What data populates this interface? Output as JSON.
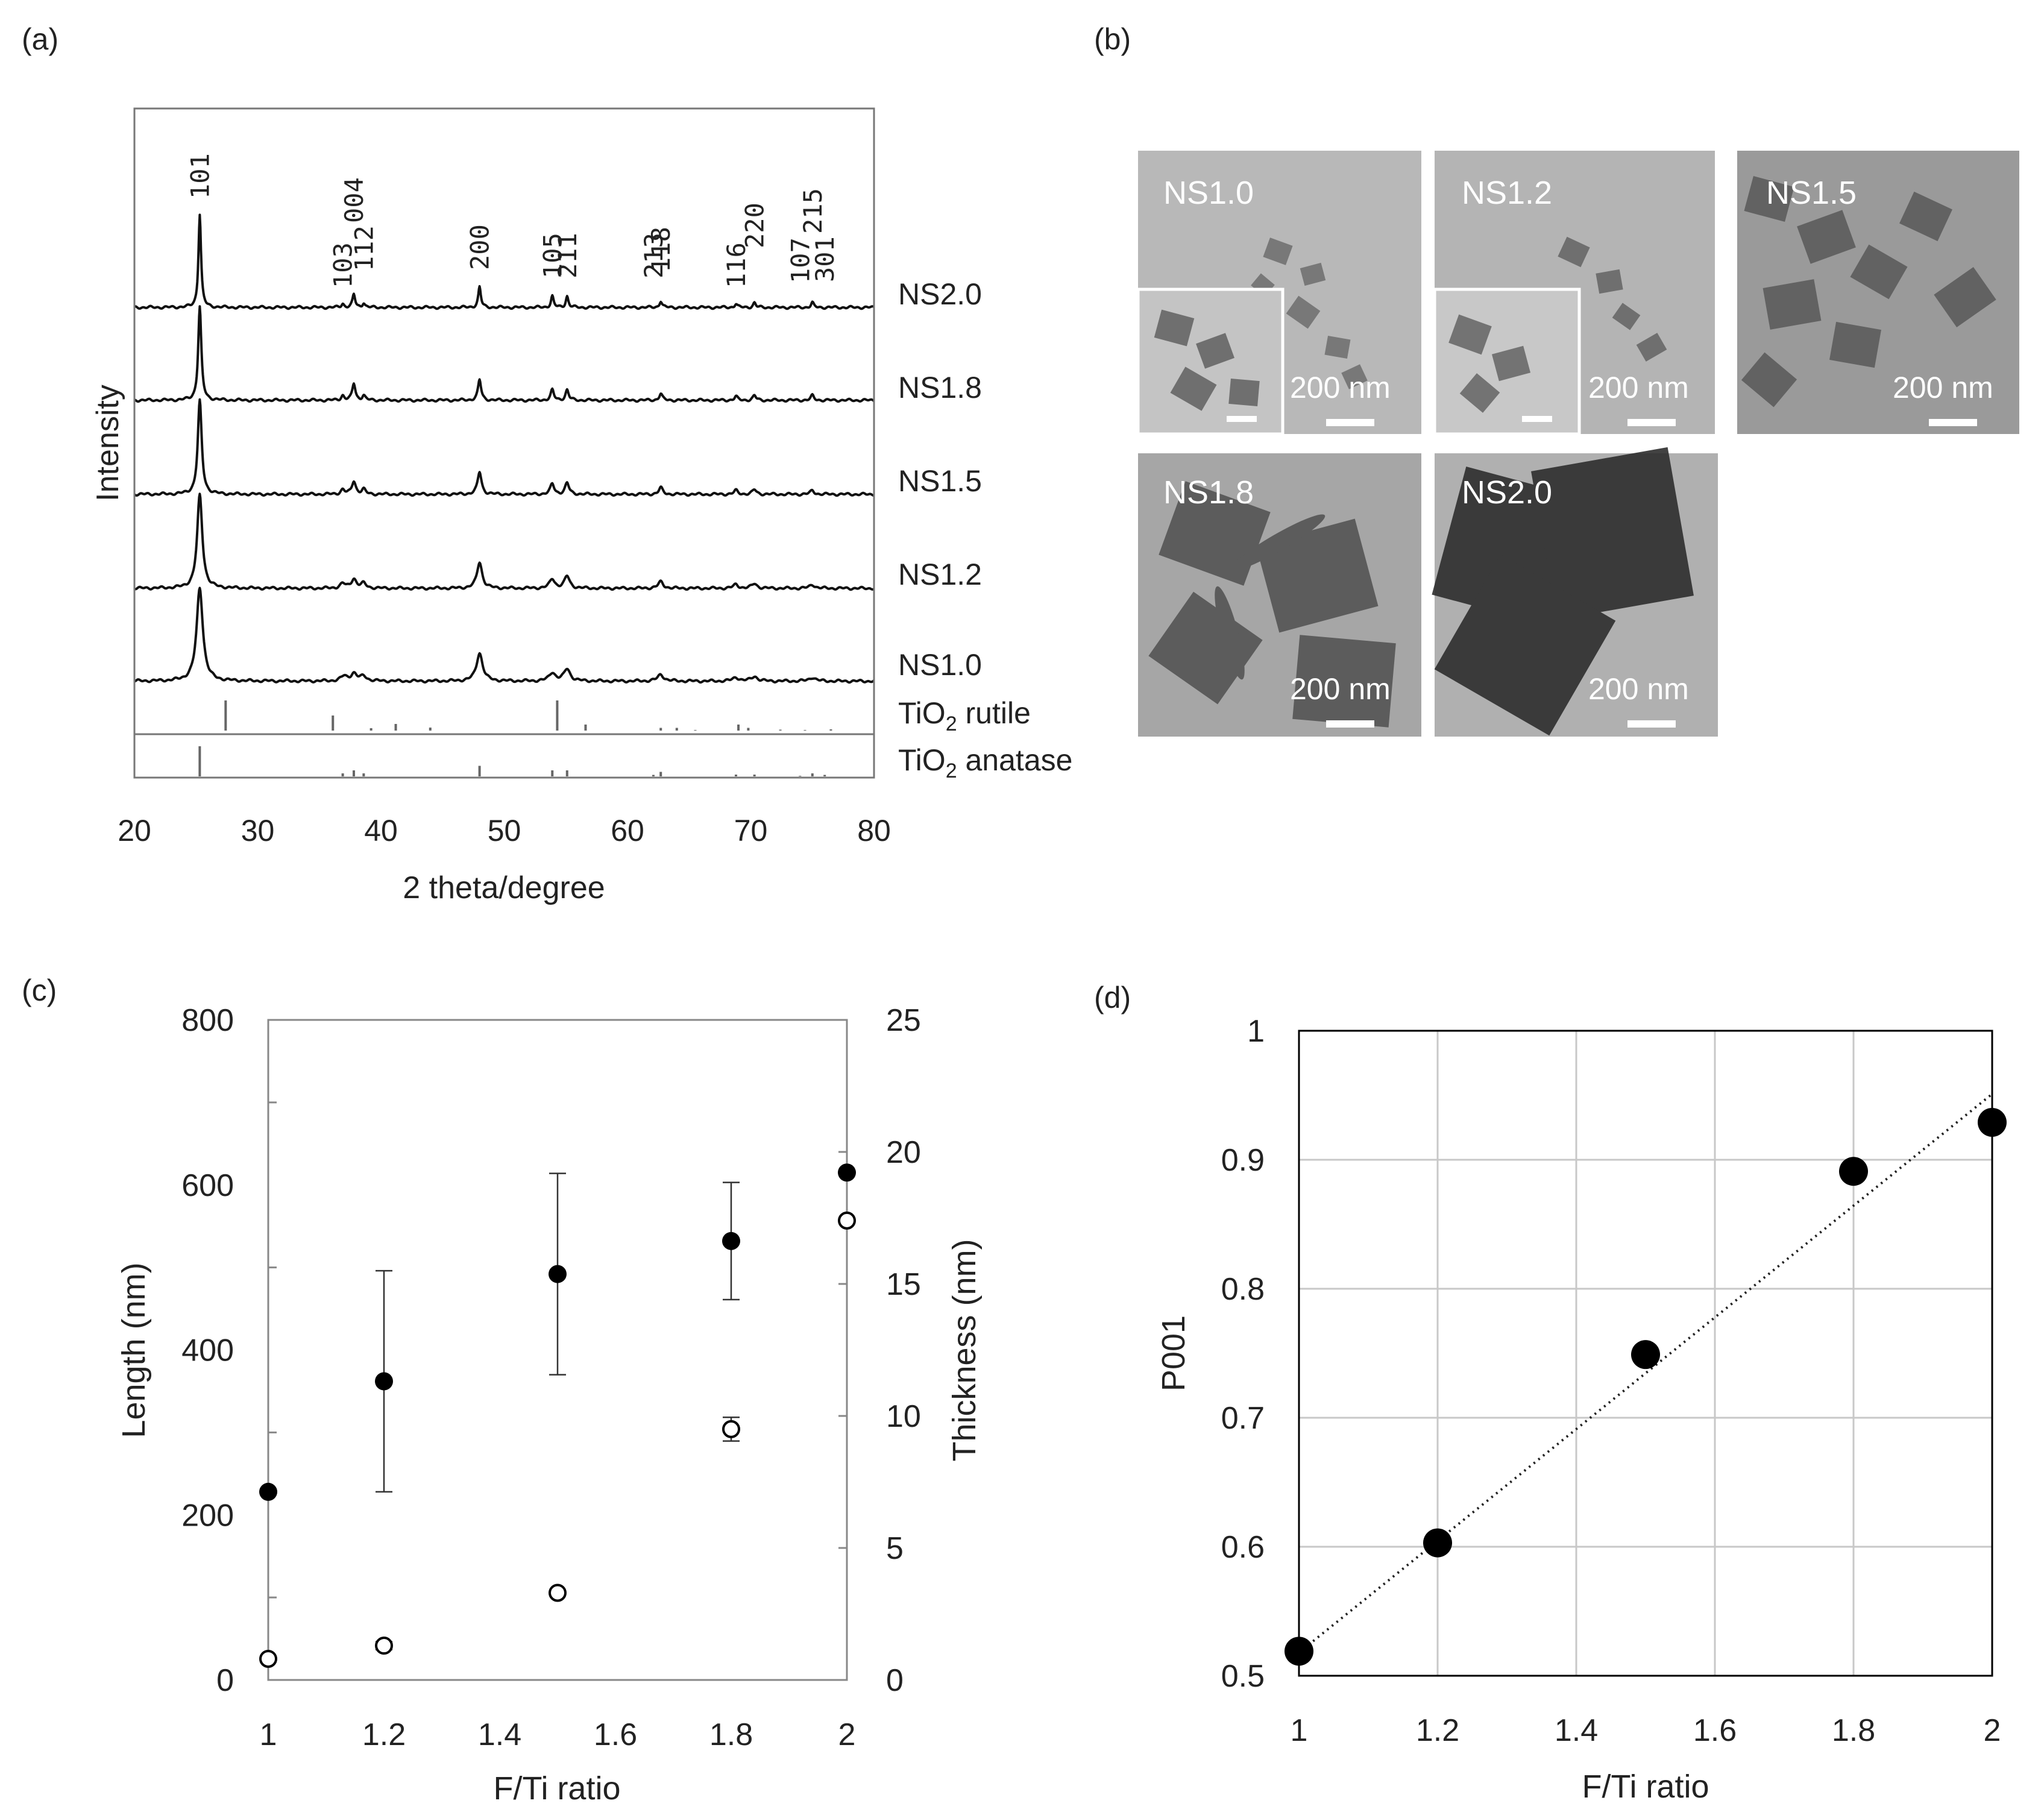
{
  "panels": {
    "a": {
      "label": "(a)"
    },
    "b": {
      "label": "(b)"
    },
    "c": {
      "label": "(c)"
    },
    "d": {
      "label": "(d)"
    }
  },
  "chart_data": [
    {
      "id": "a",
      "type": "line",
      "title": "",
      "xlabel": "2 theta/degree",
      "ylabel": "Intensity",
      "xlim": [
        20,
        80
      ],
      "xticks": [
        20,
        30,
        40,
        50,
        60,
        70,
        80
      ],
      "peak_labels": [
        {
          "text": "101",
          "x": 25.3
        },
        {
          "text": "103",
          "x": 36.9
        },
        {
          "text": "004",
          "x": 37.8
        },
        {
          "text": "112",
          "x": 38.6
        },
        {
          "text": "200",
          "x": 48.0
        },
        {
          "text": "105",
          "x": 53.9
        },
        {
          "text": "211",
          "x": 55.1
        },
        {
          "text": "213",
          "x": 62.1
        },
        {
          "text": "118",
          "x": 62.7
        },
        {
          "text": "116",
          "x": 68.8
        },
        {
          "text": "220",
          "x": 70.3
        },
        {
          "text": "107",
          "x": 74.0
        },
        {
          "text": "215",
          "x": 75.0
        },
        {
          "text": "301",
          "x": 76.0
        }
      ],
      "series": [
        {
          "name": "NS2.0",
          "fwhm": 0.25,
          "peaks": [
            [
              25.3,
              1.0
            ],
            [
              36.9,
              0.04
            ],
            [
              37.8,
              0.14
            ],
            [
              38.6,
              0.05
            ],
            [
              48.0,
              0.22
            ],
            [
              53.9,
              0.12
            ],
            [
              55.1,
              0.12
            ],
            [
              62.7,
              0.07
            ],
            [
              68.8,
              0.04
            ],
            [
              70.3,
              0.05
            ],
            [
              75.0,
              0.05
            ]
          ]
        },
        {
          "name": "NS1.8",
          "fwhm": 0.3,
          "peaks": [
            [
              25.3,
              1.0
            ],
            [
              36.9,
              0.05
            ],
            [
              37.8,
              0.18
            ],
            [
              38.6,
              0.05
            ],
            [
              48.0,
              0.22
            ],
            [
              53.9,
              0.11
            ],
            [
              55.1,
              0.11
            ],
            [
              62.7,
              0.07
            ],
            [
              68.8,
              0.04
            ],
            [
              70.3,
              0.05
            ],
            [
              75.0,
              0.05
            ]
          ]
        },
        {
          "name": "NS1.5",
          "fwhm": 0.38,
          "peaks": [
            [
              25.3,
              1.0
            ],
            [
              36.9,
              0.05
            ],
            [
              37.8,
              0.14
            ],
            [
              38.6,
              0.05
            ],
            [
              48.0,
              0.24
            ],
            [
              53.9,
              0.11
            ],
            [
              55.1,
              0.12
            ],
            [
              62.7,
              0.07
            ],
            [
              68.8,
              0.04
            ],
            [
              70.3,
              0.05
            ],
            [
              75.0,
              0.04
            ]
          ]
        },
        {
          "name": "NS1.2",
          "fwhm": 0.5,
          "peaks": [
            [
              25.3,
              1.0
            ],
            [
              36.9,
              0.05
            ],
            [
              37.8,
              0.1
            ],
            [
              38.6,
              0.05
            ],
            [
              48.0,
              0.28
            ],
            [
              53.9,
              0.1
            ],
            [
              55.1,
              0.13
            ],
            [
              62.7,
              0.07
            ],
            [
              68.8,
              0.04
            ],
            [
              70.3,
              0.05
            ],
            [
              75.0,
              0.04
            ]
          ]
        },
        {
          "name": "NS1.0",
          "fwhm": 0.6,
          "peaks": [
            [
              25.3,
              1.0
            ],
            [
              37.0,
              0.05
            ],
            [
              37.8,
              0.08
            ],
            [
              38.6,
              0.05
            ],
            [
              48.0,
              0.3
            ],
            [
              53.9,
              0.09
            ],
            [
              55.1,
              0.13
            ],
            [
              62.7,
              0.07
            ],
            [
              68.8,
              0.04
            ],
            [
              70.3,
              0.05
            ],
            [
              75.0,
              0.04
            ]
          ]
        }
      ],
      "references": [
        {
          "name_main": "TiO",
          "name_sub": "2",
          "name_rest": " rutile",
          "sticks": [
            [
              27.4,
              1.0
            ],
            [
              36.1,
              0.5
            ],
            [
              39.2,
              0.08
            ],
            [
              41.2,
              0.22
            ],
            [
              44.0,
              0.1
            ],
            [
              54.3,
              1.0
            ],
            [
              56.6,
              0.2
            ],
            [
              62.7,
              0.09
            ],
            [
              64.0,
              0.09
            ],
            [
              65.5,
              0.02
            ],
            [
              69.0,
              0.2
            ],
            [
              69.8,
              0.09
            ],
            [
              72.4,
              0.03
            ],
            [
              74.4,
              0.02
            ],
            [
              76.5,
              0.04
            ]
          ]
        },
        {
          "name_main": "TiO",
          "name_sub": "2",
          "name_rest": " anatase",
          "sticks": [
            [
              25.3,
              1.0
            ],
            [
              36.9,
              0.1
            ],
            [
              37.8,
              0.2
            ],
            [
              38.6,
              0.1
            ],
            [
              48.0,
              0.35
            ],
            [
              53.9,
              0.2
            ],
            [
              55.1,
              0.2
            ],
            [
              62.1,
              0.05
            ],
            [
              62.7,
              0.15
            ],
            [
              68.8,
              0.06
            ],
            [
              70.3,
              0.06
            ],
            [
              74.0,
              0.02
            ],
            [
              75.0,
              0.1
            ],
            [
              76.0,
              0.05
            ]
          ]
        }
      ]
    },
    {
      "id": "c",
      "type": "scatter",
      "xlabel": "F/Ti ratio",
      "ylabel": "Length (nm)",
      "ylabel_right": "Thickness (nm)",
      "xlim": [
        1,
        2
      ],
      "xticks": [
        "1",
        "1.2",
        "1.4",
        "1.6",
        "1.8",
        "2"
      ],
      "ylim": [
        0,
        800
      ],
      "yticks": [
        "0",
        "200",
        "400",
        "600",
        "800"
      ],
      "ylim_right": [
        0,
        25
      ],
      "yticks_right": [
        "0",
        "5",
        "10",
        "15",
        "20",
        "25"
      ],
      "series": [
        {
          "name": "Length",
          "marker": "filled",
          "axis": "left",
          "x": [
            1.0,
            1.2,
            1.5,
            1.8,
            2.0
          ],
          "y": [
            228,
            362,
            492,
            532,
            615
          ],
          "err": [
            0,
            134,
            122,
            71,
            0
          ]
        },
        {
          "name": "Thickness",
          "marker": "open",
          "axis": "right",
          "x": [
            1.0,
            1.2,
            1.5,
            1.8,
            2.0
          ],
          "y": [
            0.8,
            1.3,
            3.3,
            9.5,
            17.4
          ],
          "err": [
            0,
            0.15,
            0,
            0.45,
            0
          ]
        }
      ]
    },
    {
      "id": "d",
      "type": "scatter",
      "xlabel": "F/Ti ratio",
      "ylabel": "P001",
      "xlim": [
        1,
        2
      ],
      "xticks": [
        "1",
        "1.2",
        "1.4",
        "1.6",
        "1.8",
        "2"
      ],
      "ylim": [
        0.5,
        1
      ],
      "yticks": [
        "0.5",
        "0.6",
        "0.7",
        "0.8",
        "0.9",
        "1"
      ],
      "grid": true,
      "series": [
        {
          "name": "P001",
          "x": [
            1.0,
            1.2,
            1.5,
            1.8,
            2.0
          ],
          "y": [
            0.519,
            0.603,
            0.749,
            0.891,
            0.929
          ]
        }
      ],
      "trendline": {
        "style": "dotted",
        "from": [
          1.0,
          0.518
        ],
        "to": [
          2.0,
          0.951
        ]
      }
    }
  ],
  "tem_images": [
    {
      "label": "NS1.0",
      "scale": "200 nm",
      "inset": true
    },
    {
      "label": "NS1.2",
      "scale": "200 nm",
      "inset": true
    },
    {
      "label": "NS1.5",
      "scale": "200 nm",
      "inset": false
    },
    {
      "label": "NS1.8",
      "scale": "200 nm",
      "inset": false
    },
    {
      "label": "NS2.0",
      "scale": "200 nm",
      "inset": false
    }
  ]
}
